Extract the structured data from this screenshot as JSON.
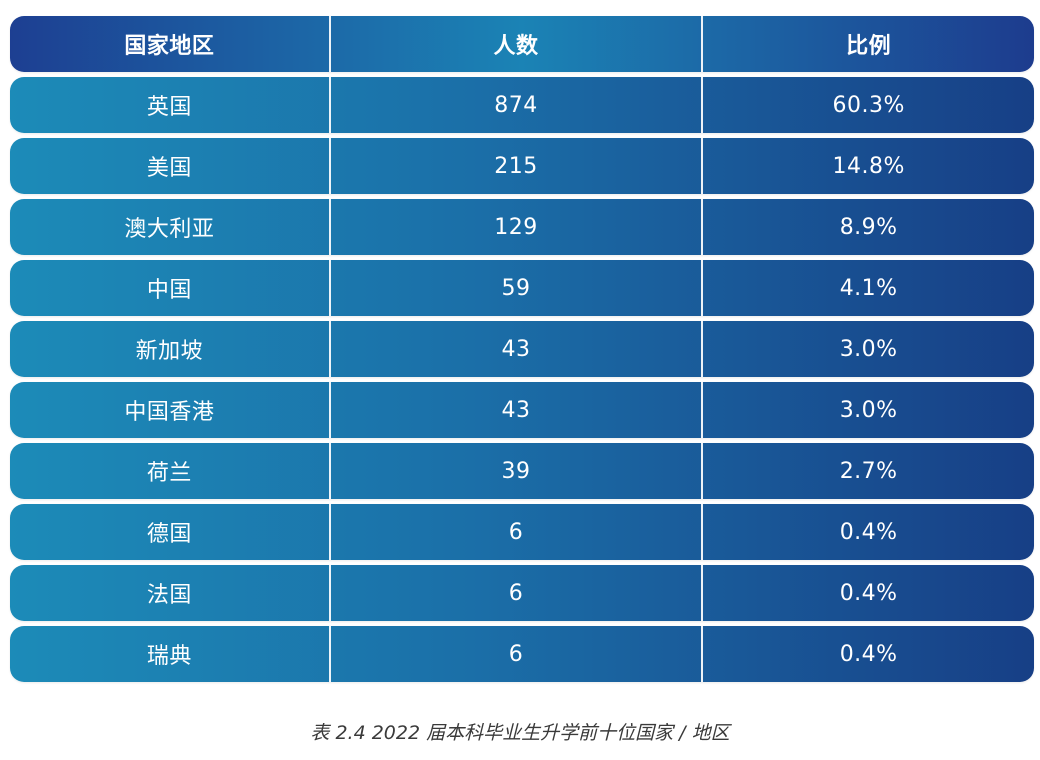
{
  "table": {
    "headers": [
      "国家地区",
      "人数",
      "比例"
    ],
    "rows": [
      {
        "region": "英国",
        "count": "874",
        "ratio": "60.3%"
      },
      {
        "region": "美国",
        "count": "215",
        "ratio": "14.8%"
      },
      {
        "region": "澳大利亚",
        "count": "129",
        "ratio": "8.9%"
      },
      {
        "region": "中国",
        "count": "59",
        "ratio": "4.1%"
      },
      {
        "region": "新加坡",
        "count": "43",
        "ratio": "3.0%"
      },
      {
        "region": "中国香港",
        "count": "43",
        "ratio": "3.0%"
      },
      {
        "region": "荷兰",
        "count": "39",
        "ratio": "2.7%"
      },
      {
        "region": "德国",
        "count": "6",
        "ratio": "0.4%"
      },
      {
        "region": "法国",
        "count": "6",
        "ratio": "0.4%"
      },
      {
        "region": "瑞典",
        "count": "6",
        "ratio": "0.4%"
      }
    ]
  },
  "caption": "表 2.4 2022 届本科毕业生升学前十位国家 / 地区",
  "colors": {
    "header_left": "#1d3f92",
    "header_mid": "#1b83b5",
    "row_left": "#1c8bb8",
    "row_right": "#173f86",
    "text": "#ffffff",
    "caption": "#3a3a3a"
  }
}
